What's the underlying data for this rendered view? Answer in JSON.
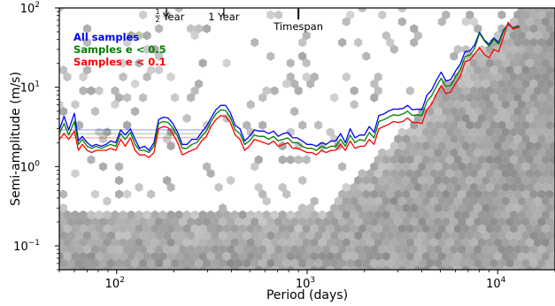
{
  "chart_data": {
    "type": "line",
    "xlabel": "Period (days)",
    "ylabel": "Semi-amplitude (m/s)",
    "xscale": "log",
    "yscale": "log",
    "xlim": [
      50,
      20000
    ],
    "ylim": [
      0.05,
      100
    ],
    "grid": false,
    "legend_position": "top-left",
    "background": "grey hexbin density of detection samples",
    "x_ticks": [
      {
        "value": 100,
        "base": "10",
        "exp": "2"
      },
      {
        "value": 1000,
        "base": "10",
        "exp": "3"
      },
      {
        "value": 10000,
        "base": "10",
        "exp": "4"
      }
    ],
    "y_ticks": [
      {
        "value": 0.1,
        "base": "10",
        "exp": "−1"
      },
      {
        "value": 1,
        "base": "10",
        "exp": "0"
      },
      {
        "value": 10,
        "base": "10",
        "exp": "1"
      },
      {
        "value": 100,
        "base": "10",
        "exp": "2"
      }
    ],
    "markers": [
      {
        "x": 182.6,
        "frac_num": "1",
        "frac_den": "2",
        "label": "Year"
      },
      {
        "x": 365.25,
        "label": "1 Year"
      },
      {
        "x": 900,
        "label": "Timespan"
      }
    ],
    "series": [
      {
        "name": "All samples",
        "color": "#0000ff",
        "reference_level": 2.9,
        "points": [
          [
            50,
            2.9
          ],
          [
            53,
            4.3
          ],
          [
            56,
            2.9
          ],
          [
            60,
            4.7
          ],
          [
            63,
            2.1
          ],
          [
            66,
            2.4
          ],
          [
            70,
            2.0
          ],
          [
            74,
            1.8
          ],
          [
            78,
            1.9
          ],
          [
            83,
            1.8
          ],
          [
            88,
            1.9
          ],
          [
            93,
            2.1
          ],
          [
            99,
            2.0
          ],
          [
            105,
            2.9
          ],
          [
            111,
            2.5
          ],
          [
            118,
            3.0
          ],
          [
            125,
            2.2
          ],
          [
            132,
            1.7
          ],
          [
            140,
            1.8
          ],
          [
            148,
            1.6
          ],
          [
            157,
            2.0
          ],
          [
            166,
            3.9
          ],
          [
            176,
            4.2
          ],
          [
            186,
            4.1
          ],
          [
            197,
            3.5
          ],
          [
            209,
            2.7
          ],
          [
            221,
            1.9
          ],
          [
            234,
            1.9
          ],
          [
            248,
            2.2
          ],
          [
            263,
            2.2
          ],
          [
            279,
            2.7
          ],
          [
            296,
            3.2
          ],
          [
            313,
            4.1
          ],
          [
            332,
            5.2
          ],
          [
            352,
            5.9
          ],
          [
            373,
            5.9
          ],
          [
            395,
            4.8
          ],
          [
            419,
            3.3
          ],
          [
            444,
            3.0
          ],
          [
            470,
            2.1
          ],
          [
            498,
            2.4
          ],
          [
            528,
            2.9
          ],
          [
            559,
            2.8
          ],
          [
            593,
            2.8
          ],
          [
            628,
            2.6
          ],
          [
            666,
            2.8
          ],
          [
            705,
            2.4
          ],
          [
            747,
            2.6
          ],
          [
            792,
            2.7
          ],
          [
            839,
            2.3
          ],
          [
            889,
            2.3
          ],
          [
            942,
            2.1
          ],
          [
            998,
            1.9
          ],
          [
            1058,
            1.9
          ],
          [
            1121,
            1.8
          ],
          [
            1188,
            2.0
          ],
          [
            1259,
            1.9
          ],
          [
            1334,
            2.1
          ],
          [
            1413,
            2.1
          ],
          [
            1497,
            2.6
          ],
          [
            1587,
            2.0
          ],
          [
            1681,
            3.0
          ],
          [
            1782,
            2.3
          ],
          [
            1888,
            2.5
          ],
          [
            2000,
            2.5
          ],
          [
            2120,
            3.2
          ],
          [
            2246,
            2.7
          ],
          [
            2380,
            4.4
          ],
          [
            2522,
            4.6
          ],
          [
            2672,
            5.0
          ],
          [
            2831,
            5.3
          ],
          [
            3000,
            5.3
          ],
          [
            3179,
            5.4
          ],
          [
            3368,
            5.9
          ],
          [
            3569,
            5.2
          ],
          [
            3782,
            5.3
          ],
          [
            4007,
            5.2
          ],
          [
            4246,
            7.9
          ],
          [
            4499,
            9.2
          ],
          [
            4767,
            12.2
          ],
          [
            5051,
            15.5
          ],
          [
            5352,
            12.0
          ],
          [
            5671,
            12.5
          ],
          [
            6009,
            16.0
          ],
          [
            6367,
            19.6
          ],
          [
            6747,
            28.1
          ],
          [
            7149,
            28.6
          ],
          [
            7575,
            34.3
          ],
          [
            8027,
            49.5
          ],
          [
            8505,
            39.6
          ],
          [
            9012,
            34.9
          ],
          [
            9549,
            42.0
          ],
          [
            10118,
            36.5
          ],
          [
            10721,
            52.4
          ],
          [
            11360,
            62.0
          ],
          [
            12037,
            56.2
          ],
          [
            12755,
            59.0
          ],
          [
            13000,
            59.0
          ]
        ]
      },
      {
        "name": "Samples e < 0.5",
        "color": "#008000",
        "reference_level": 2.6,
        "points": [
          [
            50,
            2.6
          ],
          [
            53,
            3.5
          ],
          [
            56,
            2.5
          ],
          [
            60,
            3.7
          ],
          [
            63,
            1.9
          ],
          [
            66,
            2.2
          ],
          [
            70,
            1.8
          ],
          [
            74,
            1.7
          ],
          [
            78,
            1.8
          ],
          [
            83,
            1.7
          ],
          [
            88,
            1.8
          ],
          [
            93,
            1.9
          ],
          [
            99,
            1.8
          ],
          [
            105,
            2.6
          ],
          [
            111,
            2.2
          ],
          [
            118,
            2.7
          ],
          [
            125,
            1.9
          ],
          [
            132,
            1.6
          ],
          [
            140,
            1.6
          ],
          [
            148,
            1.5
          ],
          [
            157,
            1.8
          ],
          [
            166,
            3.5
          ],
          [
            176,
            3.7
          ],
          [
            186,
            3.6
          ],
          [
            197,
            3.1
          ],
          [
            209,
            2.4
          ],
          [
            221,
            1.7
          ],
          [
            234,
            1.7
          ],
          [
            248,
            1.9
          ],
          [
            263,
            2.0
          ],
          [
            279,
            2.4
          ],
          [
            296,
            2.8
          ],
          [
            313,
            3.7
          ],
          [
            332,
            4.6
          ],
          [
            352,
            5.2
          ],
          [
            373,
            5.1
          ],
          [
            395,
            4.2
          ],
          [
            419,
            2.9
          ],
          [
            444,
            2.6
          ],
          [
            470,
            1.9
          ],
          [
            498,
            2.1
          ],
          [
            528,
            2.5
          ],
          [
            559,
            2.4
          ],
          [
            593,
            2.4
          ],
          [
            628,
            2.2
          ],
          [
            666,
            2.4
          ],
          [
            705,
            2.1
          ],
          [
            747,
            2.2
          ],
          [
            792,
            2.3
          ],
          [
            839,
            2.0
          ],
          [
            889,
            2.0
          ],
          [
            942,
            1.8
          ],
          [
            998,
            1.7
          ],
          [
            1058,
            1.7
          ],
          [
            1121,
            1.6
          ],
          [
            1188,
            1.8
          ],
          [
            1259,
            1.7
          ],
          [
            1334,
            1.8
          ],
          [
            1413,
            1.8
          ],
          [
            1497,
            2.2
          ],
          [
            1587,
            1.8
          ],
          [
            1681,
            2.5
          ],
          [
            1782,
            2.0
          ],
          [
            1888,
            2.2
          ],
          [
            2000,
            2.1
          ],
          [
            2120,
            2.7
          ],
          [
            2246,
            2.3
          ],
          [
            2380,
            3.7
          ],
          [
            2522,
            3.9
          ],
          [
            2672,
            4.2
          ],
          [
            2831,
            4.5
          ],
          [
            3000,
            4.4
          ],
          [
            3179,
            4.6
          ],
          [
            3368,
            5.0
          ],
          [
            3569,
            4.4
          ],
          [
            3782,
            4.5
          ],
          [
            4007,
            4.4
          ],
          [
            4246,
            6.6
          ],
          [
            4499,
            7.8
          ],
          [
            4767,
            10.2
          ],
          [
            5051,
            13.0
          ],
          [
            5352,
            10.2
          ],
          [
            5671,
            10.6
          ],
          [
            6009,
            13.5
          ],
          [
            6367,
            16.6
          ],
          [
            6747,
            24.5
          ],
          [
            7149,
            25.4
          ],
          [
            7575,
            31.0
          ],
          [
            8027,
            48.0
          ],
          [
            8505,
            38.5
          ],
          [
            9012,
            33.0
          ],
          [
            9549,
            40.5
          ],
          [
            10118,
            35.0
          ],
          [
            10721,
            50.5
          ],
          [
            11360,
            64.0
          ],
          [
            12037,
            56.0
          ],
          [
            12755,
            59.0
          ],
          [
            13000,
            58.0
          ]
        ]
      },
      {
        "name": "Samples e < 0.1",
        "color": "#ff0000",
        "reference_level": 2.3,
        "points": [
          [
            50,
            2.2
          ],
          [
            53,
            2.6
          ],
          [
            56,
            2.2
          ],
          [
            60,
            2.8
          ],
          [
            63,
            1.6
          ],
          [
            66,
            1.9
          ],
          [
            70,
            1.6
          ],
          [
            74,
            1.5
          ],
          [
            78,
            1.6
          ],
          [
            83,
            1.6
          ],
          [
            88,
            1.6
          ],
          [
            93,
            1.7
          ],
          [
            99,
            1.6
          ],
          [
            105,
            2.2
          ],
          [
            111,
            1.8
          ],
          [
            118,
            2.3
          ],
          [
            125,
            1.6
          ],
          [
            132,
            1.4
          ],
          [
            140,
            1.4
          ],
          [
            148,
            1.3
          ],
          [
            157,
            1.5
          ],
          [
            166,
            3.0
          ],
          [
            176,
            3.2
          ],
          [
            186,
            3.1
          ],
          [
            197,
            2.6
          ],
          [
            209,
            2.0
          ],
          [
            221,
            1.4
          ],
          [
            234,
            1.5
          ],
          [
            248,
            1.6
          ],
          [
            263,
            1.7
          ],
          [
            279,
            2.1
          ],
          [
            296,
            2.4
          ],
          [
            313,
            3.2
          ],
          [
            332,
            3.9
          ],
          [
            352,
            4.4
          ],
          [
            373,
            4.3
          ],
          [
            395,
            3.6
          ],
          [
            419,
            2.5
          ],
          [
            444,
            2.2
          ],
          [
            470,
            1.6
          ],
          [
            498,
            1.8
          ],
          [
            528,
            2.2
          ],
          [
            559,
            2.1
          ],
          [
            593,
            2.0
          ],
          [
            628,
            1.9
          ],
          [
            666,
            2.1
          ],
          [
            705,
            1.8
          ],
          [
            747,
            1.9
          ],
          [
            792,
            2.0
          ],
          [
            839,
            1.7
          ],
          [
            889,
            1.7
          ],
          [
            942,
            1.6
          ],
          [
            998,
            1.5
          ],
          [
            1058,
            1.5
          ],
          [
            1121,
            1.4
          ],
          [
            1188,
            1.6
          ],
          [
            1259,
            1.5
          ],
          [
            1334,
            1.6
          ],
          [
            1413,
            1.6
          ],
          [
            1497,
            1.9
          ],
          [
            1587,
            1.6
          ],
          [
            1681,
            2.1
          ],
          [
            1782,
            1.7
          ],
          [
            1888,
            1.8
          ],
          [
            2000,
            1.8
          ],
          [
            2120,
            2.2
          ],
          [
            2246,
            1.9
          ],
          [
            2380,
            3.0
          ],
          [
            2522,
            3.2
          ],
          [
            2672,
            3.4
          ],
          [
            2831,
            3.7
          ],
          [
            3000,
            3.6
          ],
          [
            3179,
            3.7
          ],
          [
            3368,
            4.1
          ],
          [
            3569,
            3.6
          ],
          [
            3782,
            3.6
          ],
          [
            4007,
            3.5
          ],
          [
            4246,
            5.2
          ],
          [
            4499,
            6.1
          ],
          [
            4767,
            8.2
          ],
          [
            5051,
            10.5
          ],
          [
            5352,
            8.3
          ],
          [
            5671,
            8.7
          ],
          [
            6009,
            11.2
          ],
          [
            6367,
            13.8
          ],
          [
            6747,
            21.0
          ],
          [
            7149,
            22.0
          ],
          [
            7575,
            26.5
          ],
          [
            8027,
            31.5
          ],
          [
            8505,
            26.0
          ],
          [
            9012,
            23.5
          ],
          [
            9549,
            30.0
          ],
          [
            10118,
            28.0
          ],
          [
            10721,
            43.0
          ],
          [
            11360,
            66.0
          ],
          [
            12037,
            54.0
          ],
          [
            12755,
            57.0
          ],
          [
            13000,
            56.0
          ]
        ]
      }
    ]
  }
}
